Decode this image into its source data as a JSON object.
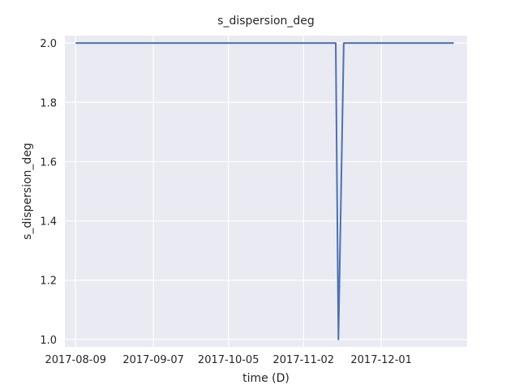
{
  "chart_data": {
    "type": "line",
    "title": "s_dispersion_deg",
    "xlabel": "time (D)",
    "ylabel": "s_dispersion_deg",
    "x_type": "date",
    "xlim": [
      "2017-08-05",
      "2018-01-02"
    ],
    "ylim": [
      0.975,
      2.025
    ],
    "grid": true,
    "x_ticks": [
      "2017-08-09",
      "2017-09-07",
      "2017-10-05",
      "2017-11-02",
      "2017-12-01"
    ],
    "y_ticks": [
      1.0,
      1.2,
      1.4,
      1.6,
      1.8,
      2.0
    ],
    "y_tick_labels": [
      "1.0",
      "1.2",
      "1.4",
      "1.6",
      "1.8",
      "2.0"
    ],
    "series": [
      {
        "color": "#4c72b0",
        "points": [
          {
            "x": "2017-08-09",
            "y": 2.0
          },
          {
            "x": "2017-11-14",
            "y": 2.0
          },
          {
            "x": "2017-11-15",
            "y": 1.0
          },
          {
            "x": "2017-11-17",
            "y": 2.0
          },
          {
            "x": "2017-12-28",
            "y": 2.0
          }
        ]
      }
    ]
  },
  "colors": {
    "plot_background": "#eaeaf2",
    "grid": "#ffffff",
    "text": "#262626"
  }
}
